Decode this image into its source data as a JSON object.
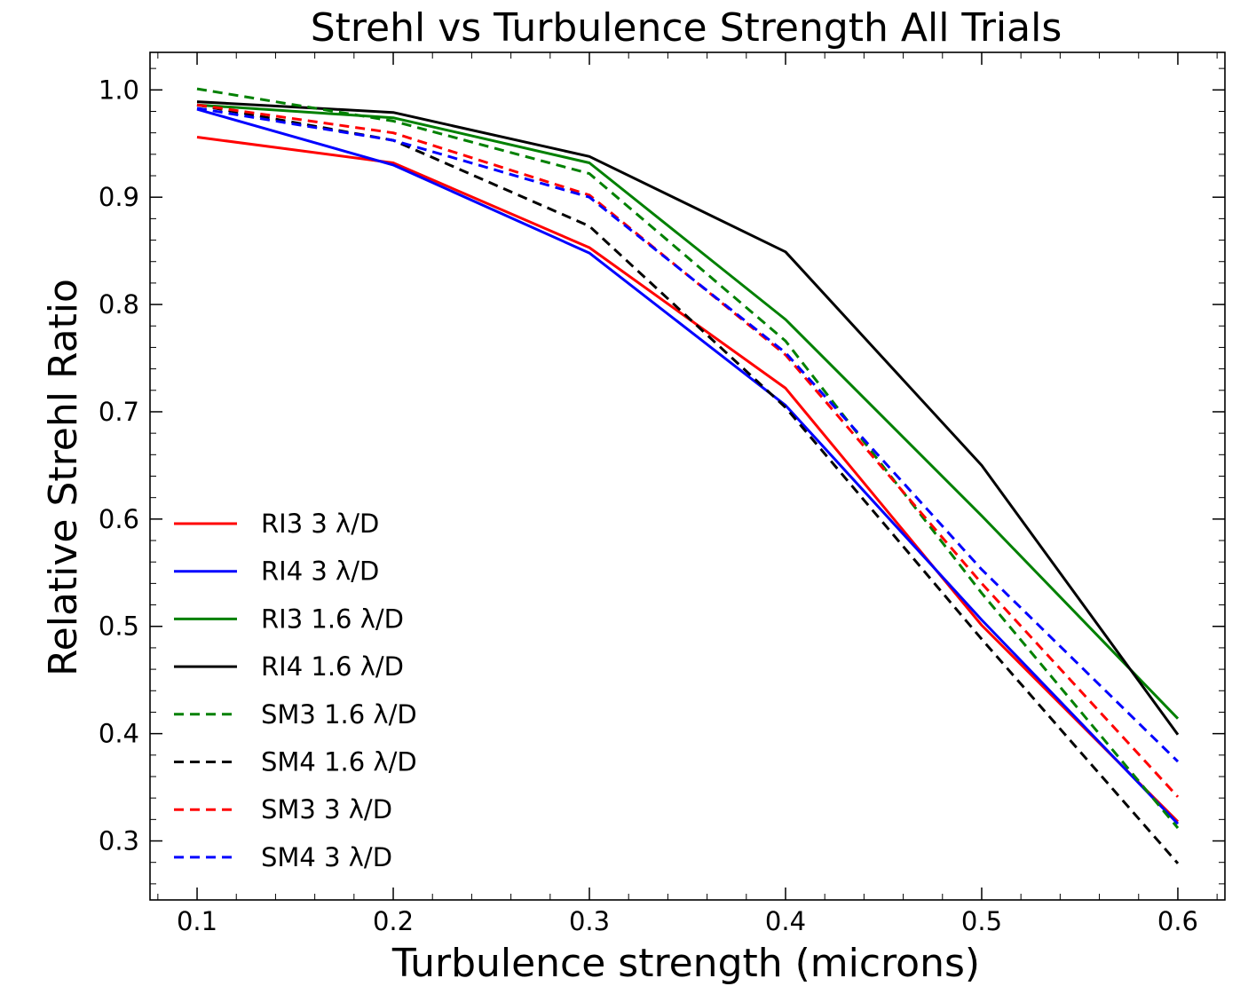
{
  "chart_data": {
    "type": "line",
    "title": "Strehl vs Turbulence Strength All Trials",
    "xlabel": "Turbulence strength (microns)",
    "ylabel": "Relative Strehl Ratio",
    "xlim": [
      0.076,
      0.624
    ],
    "ylim": [
      0.245,
      1.035
    ],
    "x": [
      0.1,
      0.2,
      0.3,
      0.4,
      0.5,
      0.6
    ],
    "x_ticks": [
      "0.1",
      "0.2",
      "0.3",
      "0.4",
      "0.5",
      "0.6"
    ],
    "y_ticks": [
      "0.3",
      "0.4",
      "0.5",
      "0.6",
      "0.7",
      "0.8",
      "0.9",
      "1.0"
    ],
    "x_tick_values": [
      0.1,
      0.2,
      0.3,
      0.4,
      0.5,
      0.6
    ],
    "y_tick_values": [
      0.3,
      0.4,
      0.5,
      0.6,
      0.7,
      0.8,
      0.9,
      1.0
    ],
    "grid": false,
    "legend_position": "lower-left",
    "series": [
      {
        "name": "RI3 3 λ/D",
        "color": "#ff0000",
        "style": "solid",
        "values": [
          0.956,
          0.932,
          0.853,
          0.722,
          0.501,
          0.318
        ]
      },
      {
        "name": "RI4 3 λ/D",
        "color": "#0000ff",
        "style": "solid",
        "values": [
          0.982,
          0.93,
          0.848,
          0.706,
          0.506,
          0.316
        ]
      },
      {
        "name": "RI3 1.6 λ/D",
        "color": "#008000",
        "style": "solid",
        "values": [
          0.986,
          0.974,
          0.932,
          0.786,
          0.603,
          0.414
        ]
      },
      {
        "name": "RI4 1.6 λ/D",
        "color": "#000000",
        "style": "solid",
        "values": [
          0.989,
          0.979,
          0.938,
          0.849,
          0.65,
          0.399
        ]
      },
      {
        "name": "SM3 1.6 λ/D",
        "color": "#008000",
        "style": "dashed",
        "values": [
          1.001,
          0.971,
          0.922,
          0.766,
          0.531,
          0.312
        ]
      },
      {
        "name": "SM4 1.6 λ/D",
        "color": "#000000",
        "style": "dashed",
        "values": [
          0.986,
          0.953,
          0.873,
          0.704,
          0.488,
          0.279
        ]
      },
      {
        "name": "SM3 3 λ/D",
        "color": "#ff0000",
        "style": "dashed",
        "values": [
          0.986,
          0.96,
          0.902,
          0.753,
          0.54,
          0.341
        ]
      },
      {
        "name": "SM4 3 λ/D",
        "color": "#0000ff",
        "style": "dashed",
        "values": [
          0.983,
          0.953,
          0.9,
          0.755,
          0.553,
          0.374
        ]
      }
    ]
  }
}
